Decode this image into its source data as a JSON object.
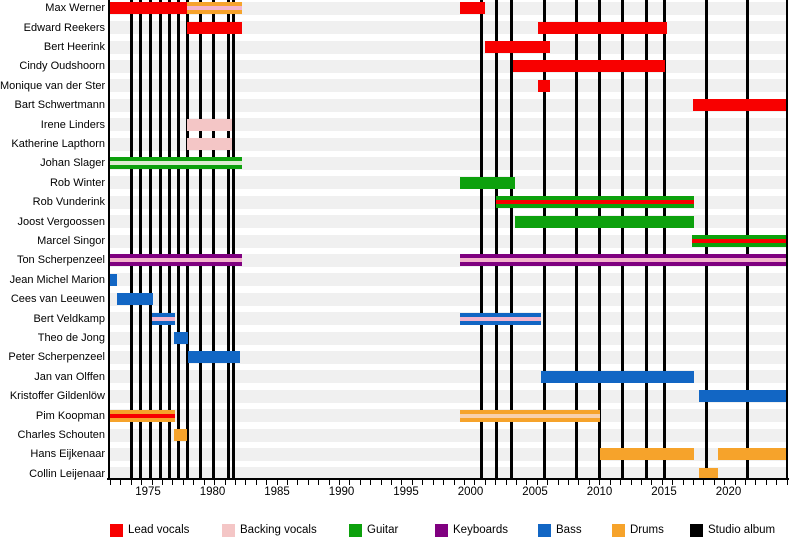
{
  "chart_data": {
    "type": "timeline",
    "description": "Band line-up timeline with roles as colored bars and studio albums as vertical black lines",
    "x_axis": {
      "start": 1972.05,
      "end": 2024.5,
      "unit": "year",
      "tick_labels": [
        "1975",
        "1980",
        "1985",
        "1990",
        "1995",
        "2000",
        "2005",
        "2010",
        "2015",
        "2020"
      ],
      "tick_label_years": [
        1975,
        1980,
        1985,
        1990,
        1995,
        2000,
        2005,
        2010,
        2015,
        2020
      ]
    },
    "colors": {
      "lead": "#f80000",
      "backing": "#f4c6c6",
      "guitar": "#0da10d",
      "keyboards": "#800080",
      "bass": "#1266c4",
      "drums": "#f6a32b",
      "album": "#000000",
      "stripe_pink": "#f3b4cd",
      "stripe_pale": "#dcecd0",
      "stripe_peach": "#f8d0ac",
      "row_band": "#f0f0f0"
    },
    "legend": [
      {
        "label": "Lead vocals",
        "color_key": "lead"
      },
      {
        "label": "Backing vocals",
        "color_key": "backing"
      },
      {
        "label": "Guitar",
        "color_key": "guitar"
      },
      {
        "label": "Keyboards",
        "color_key": "keyboards"
      },
      {
        "label": "Bass",
        "color_key": "bass"
      },
      {
        "label": "Drums",
        "color_key": "drums"
      },
      {
        "label": "Studio album",
        "color_key": "album"
      }
    ],
    "album_years": [
      1973.75,
      1974.45,
      1975.2,
      1976.0,
      1976.7,
      1977.4,
      1978.05,
      1979.05,
      1980.05,
      1981.25,
      1981.6,
      2000.85,
      2002.0,
      2003.2,
      2005.7,
      2008.2,
      2010.0,
      2011.8,
      2013.65,
      2015.05,
      2018.3,
      2021.5
    ],
    "members": [
      {
        "name": "Max Werner",
        "bars": [
          {
            "from": 1972.05,
            "to": 1978.0,
            "role": "Lead vocals",
            "color": "lead"
          },
          {
            "from": 1978.0,
            "to": 1982.25,
            "role": "Drums",
            "color": "drums",
            "stripe": "stripe_pink",
            "stripe_role": "Backing vocals"
          },
          {
            "from": 1999.2,
            "to": 2001.1,
            "role": "Lead vocals",
            "color": "lead"
          }
        ]
      },
      {
        "name": "Edward Reekers",
        "bars": [
          {
            "from": 1978.0,
            "to": 1982.25,
            "role": "Lead vocals",
            "color": "lead"
          },
          {
            "from": 2005.25,
            "to": 2015.2,
            "role": "Lead vocals",
            "color": "lead"
          }
        ]
      },
      {
        "name": "Bert Heerink",
        "bars": [
          {
            "from": 2001.1,
            "to": 2006.2,
            "role": "Lead vocals",
            "color": "lead"
          }
        ]
      },
      {
        "name": "Cindy Oudshoorn",
        "bars": [
          {
            "from": 2003.3,
            "to": 2015.05,
            "role": "Lead vocals",
            "color": "lead"
          }
        ]
      },
      {
        "name": "Monique van der Ster",
        "bars": [
          {
            "from": 2005.25,
            "to": 2006.2,
            "role": "Lead vocals",
            "color": "lead"
          }
        ]
      },
      {
        "name": "Bart Schwertmann",
        "bars": [
          {
            "from": 2017.25,
            "to": 2024.5,
            "role": "Lead vocals",
            "color": "lead"
          }
        ]
      },
      {
        "name": "Irene Linders",
        "bars": [
          {
            "from": 1978.05,
            "to": 1981.5,
            "role": "Backing vocals",
            "color": "backing"
          }
        ]
      },
      {
        "name": "Katherine Lapthorn",
        "bars": [
          {
            "from": 1978.05,
            "to": 1981.5,
            "role": "Backing vocals",
            "color": "backing"
          }
        ]
      },
      {
        "name": "Johan Slager",
        "bars": [
          {
            "from": 1972.05,
            "to": 1982.25,
            "role": "Guitar",
            "color": "guitar",
            "stripe": "stripe_pale",
            "stripe_role": "Backing vocals"
          }
        ]
      },
      {
        "name": "Rob Winter",
        "bars": [
          {
            "from": 1999.2,
            "to": 2003.45,
            "role": "Guitar",
            "color": "guitar"
          }
        ]
      },
      {
        "name": "Rob Vunderink",
        "bars": [
          {
            "from": 2002.0,
            "to": 2017.3,
            "role": "Guitar",
            "color": "guitar",
            "stripe": "lead",
            "stripe_role": "Lead vocals"
          }
        ]
      },
      {
        "name": "Joost Vergoossen",
        "bars": [
          {
            "from": 2003.45,
            "to": 2017.3,
            "role": "Guitar",
            "color": "guitar"
          }
        ]
      },
      {
        "name": "Marcel Singor",
        "bars": [
          {
            "from": 2017.2,
            "to": 2024.5,
            "role": "Guitar",
            "color": "guitar",
            "stripe": "lead",
            "stripe_role": "Lead vocals"
          }
        ]
      },
      {
        "name": "Ton Scherpenzeel",
        "bars": [
          {
            "from": 1972.05,
            "to": 1982.25,
            "role": "Keyboards",
            "color": "keyboards",
            "stripe": "stripe_pink",
            "stripe_role": "Backing vocals"
          },
          {
            "from": 1999.2,
            "to": 2024.5,
            "role": "Keyboards",
            "color": "keyboards",
            "stripe": "stripe_pink",
            "stripe_role": "Backing vocals"
          }
        ]
      },
      {
        "name": "Jean Michel Marion",
        "bars": [
          {
            "from": 1972.05,
            "to": 1972.6,
            "role": "Bass",
            "color": "bass"
          }
        ]
      },
      {
        "name": "Cees van Leeuwen",
        "bars": [
          {
            "from": 1972.6,
            "to": 1975.4,
            "role": "Bass",
            "color": "bass"
          }
        ]
      },
      {
        "name": "Bert Veldkamp",
        "bars": [
          {
            "from": 1975.3,
            "to": 1977.1,
            "role": "Bass",
            "color": "bass",
            "stripe": "stripe_pink",
            "stripe_role": "Backing vocals"
          },
          {
            "from": 1999.2,
            "to": 2005.5,
            "role": "Bass",
            "color": "bass",
            "stripe": "stripe_pink",
            "stripe_role": "Backing vocals"
          }
        ]
      },
      {
        "name": "Theo de Jong",
        "bars": [
          {
            "from": 1977.0,
            "to": 1978.1,
            "role": "Bass",
            "color": "bass"
          }
        ]
      },
      {
        "name": "Peter Scherpenzeel",
        "bars": [
          {
            "from": 1978.1,
            "to": 1982.15,
            "role": "Bass",
            "color": "bass"
          }
        ]
      },
      {
        "name": "Jan van Olffen",
        "bars": [
          {
            "from": 2005.5,
            "to": 2017.3,
            "role": "Bass",
            "color": "bass"
          }
        ]
      },
      {
        "name": "Kristoffer Gildenlöw",
        "bars": [
          {
            "from": 2017.7,
            "to": 2024.5,
            "role": "Bass",
            "color": "bass"
          }
        ]
      },
      {
        "name": "Pim Koopman",
        "bars": [
          {
            "from": 1972.05,
            "to": 1977.1,
            "role": "Drums",
            "color": "drums",
            "stripe": "lead",
            "stripe_role": "Lead vocals"
          },
          {
            "from": 1999.2,
            "to": 2010.05,
            "role": "Drums",
            "color": "drums",
            "stripe": "stripe_peach",
            "stripe_role": "Backing vocals"
          }
        ]
      },
      {
        "name": "Charles Schouten",
        "bars": [
          {
            "from": 1977.0,
            "to": 1978.05,
            "role": "Drums",
            "color": "drums"
          }
        ]
      },
      {
        "name": "Hans Eijkenaar",
        "bars": [
          {
            "from": 2010.05,
            "to": 2017.3,
            "role": "Drums",
            "color": "drums"
          },
          {
            "from": 2019.2,
            "to": 2024.5,
            "role": "Drums",
            "color": "drums"
          }
        ]
      },
      {
        "name": "Collin Leijenaar",
        "bars": [
          {
            "from": 2017.7,
            "to": 2019.2,
            "role": "Drums",
            "color": "drums"
          }
        ]
      }
    ]
  }
}
